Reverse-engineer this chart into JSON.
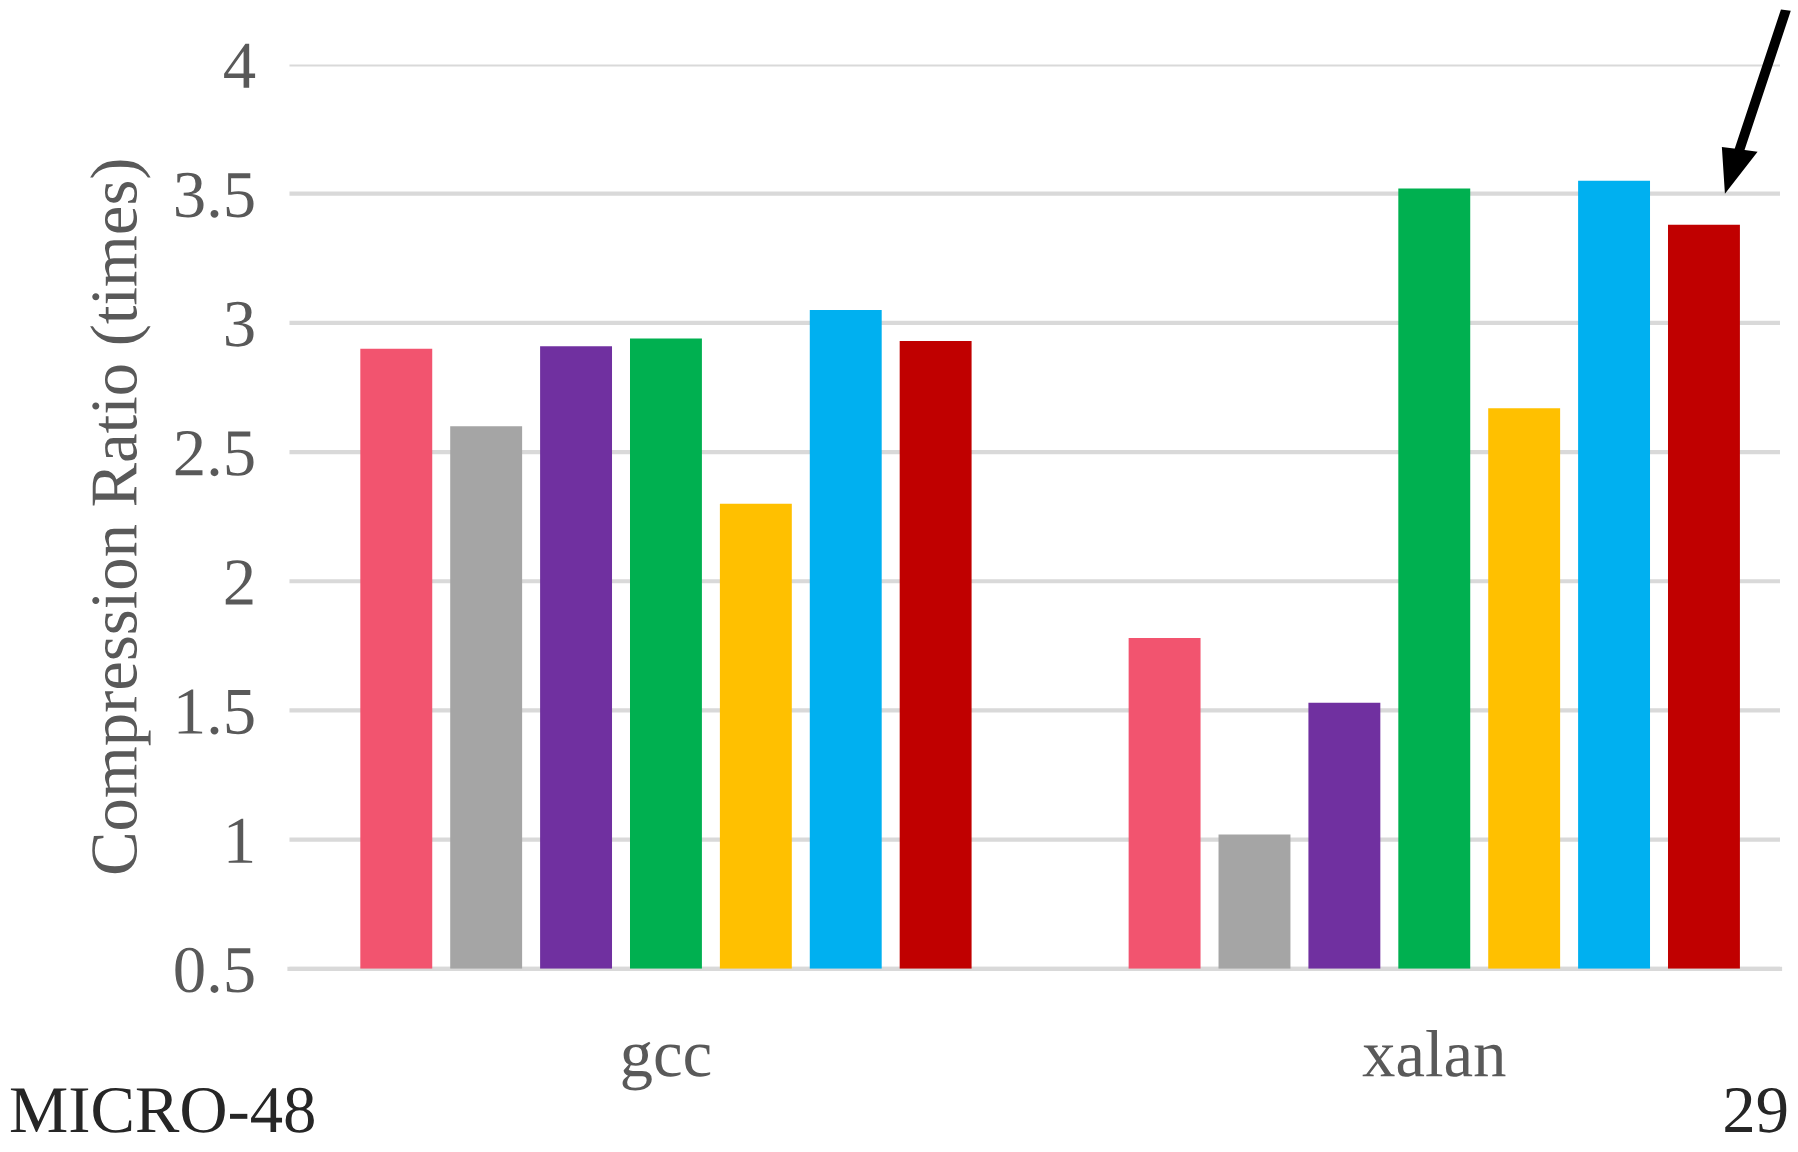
{
  "chart_data": {
    "type": "bar",
    "ylabel": "Compression Ratio (times)",
    "categories": [
      "gcc",
      "xalan"
    ],
    "series": [
      {
        "color": "#f2546f",
        "values": [
          2.9,
          1.78
        ]
      },
      {
        "color": "#a5a5a5",
        "values": [
          2.6,
          1.02
        ]
      },
      {
        "color": "#7030a0",
        "values": [
          2.91,
          1.53
        ]
      },
      {
        "color": "#00b050",
        "values": [
          2.94,
          3.52
        ]
      },
      {
        "color": "#ffc000",
        "values": [
          2.3,
          2.67
        ]
      },
      {
        "color": "#00b0f0",
        "values": [
          3.05,
          3.55
        ]
      },
      {
        "color": "#c00000",
        "values": [
          2.93,
          3.38
        ]
      }
    ],
    "ylim": [
      0.5,
      4
    ],
    "yticks": [
      0.5,
      1,
      1.5,
      2,
      2.5,
      3,
      3.5,
      4
    ],
    "grid": "y",
    "legend": false,
    "annotations": [
      "MICRO-48",
      "29"
    ]
  }
}
